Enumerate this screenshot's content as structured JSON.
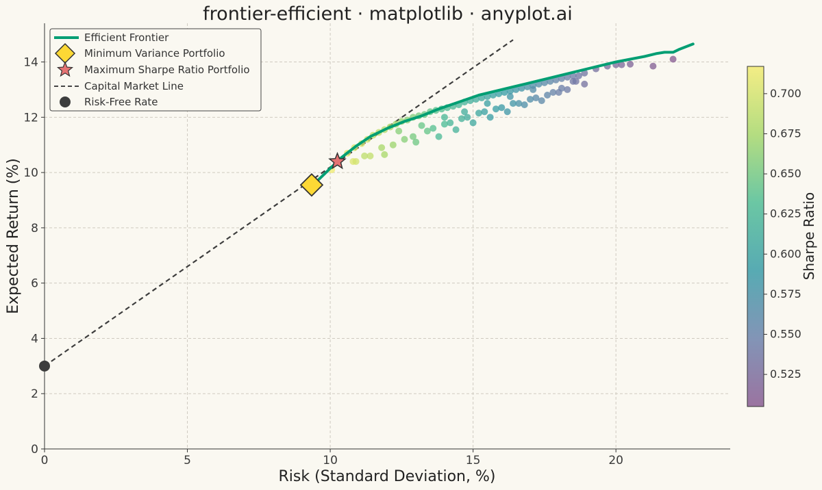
{
  "chart_data": {
    "type": "scatter",
    "title": "frontier-efficient · matplotlib · anyplot.ai",
    "xlabel": "Risk (Standard Deviation, %)",
    "ylabel": "Expected Return (%)",
    "xlim": [
      0,
      24
    ],
    "ylim": [
      0,
      15.4
    ],
    "xticks": [
      0,
      5,
      10,
      15,
      20
    ],
    "yticks": [
      0,
      2,
      4,
      6,
      8,
      10,
      12,
      14
    ],
    "grid": true,
    "legend_position": "top-left",
    "colorbar": {
      "label": "Sharpe Ratio",
      "range": [
        0.505,
        0.717
      ],
      "ticks": [
        "0.525",
        "0.550",
        "0.575",
        "0.600",
        "0.625",
        "0.650",
        "0.675",
        "0.700"
      ],
      "tick_values": [
        0.525,
        0.55,
        0.575,
        0.6,
        0.625,
        0.65,
        0.675,
        0.7
      ],
      "colormap_stops": [
        "#8A5C92",
        "#6D83AC",
        "#3B9DA8",
        "#52BE96",
        "#A8D86D",
        "#F2EB72"
      ]
    },
    "risk_free_rate": {
      "x": 0,
      "y": 3.0
    },
    "capital_market_line": {
      "x": [
        0,
        16.4
      ],
      "y": [
        3.0,
        14.8
      ]
    },
    "min_variance_portfolio": {
      "x": 9.35,
      "y": 9.55
    },
    "max_sharpe_portfolio": {
      "x": 10.25,
      "y": 10.4
    },
    "efficient_frontier": {
      "x": [
        9.6,
        10.0,
        10.4,
        10.9,
        11.4,
        12.0,
        12.6,
        13.2,
        13.8,
        14.5,
        15.2,
        16.0,
        16.8,
        17.6,
        18.4,
        19.2,
        20.0,
        20.5,
        21.0,
        21.4,
        21.7,
        22.0,
        22.2,
        22.7
      ],
      "y": [
        9.75,
        10.15,
        10.55,
        10.95,
        11.3,
        11.6,
        11.85,
        12.05,
        12.3,
        12.55,
        12.8,
        13.0,
        13.2,
        13.4,
        13.6,
        13.8,
        14.0,
        14.1,
        14.2,
        14.3,
        14.35,
        14.35,
        14.45,
        14.65
      ]
    },
    "portfolios": {
      "x": [
        10.05,
        10.3,
        10.6,
        10.85,
        11.1,
        11.3,
        11.5,
        11.7,
        11.9,
        12.1,
        12.3,
        12.5,
        12.7,
        12.9,
        13.1,
        13.3,
        13.5,
        13.7,
        13.9,
        14.1,
        14.3,
        14.5,
        14.7,
        14.9,
        15.1,
        15.3,
        15.5,
        15.7,
        15.9,
        16.1,
        16.3,
        16.5,
        16.7,
        16.9,
        17.1,
        17.3,
        17.5,
        17.7,
        17.9,
        18.1,
        18.3,
        18.5,
        18.7,
        18.9,
        19.3,
        19.7,
        20.0,
        20.2,
        20.5,
        21.3,
        22.0,
        10.8,
        11.4,
        12.2,
        12.9,
        13.6,
        14.2,
        14.8,
        15.4,
        16.0,
        16.6,
        17.2,
        17.8,
        18.3,
        18.9,
        11.2,
        11.8,
        12.6,
        13.4,
        14.0,
        14.6,
        15.2,
        15.8,
        16.4,
        17.0,
        17.6,
        18.1,
        18.6,
        10.9,
        11.9,
        13.0,
        13.8,
        14.4,
        15.0,
        15.6,
        16.2,
        16.8,
        17.4,
        18.0,
        18.5,
        12.4,
        13.2,
        14.0,
        14.7,
        15.5,
        16.3,
        17.1
      ],
      "y": [
        10.1,
        10.45,
        10.7,
        10.9,
        11.05,
        11.2,
        11.35,
        11.45,
        11.55,
        11.65,
        11.75,
        11.85,
        11.9,
        12.0,
        12.05,
        12.1,
        12.2,
        12.25,
        12.3,
        12.35,
        12.4,
        12.45,
        12.55,
        12.6,
        12.65,
        12.7,
        12.75,
        12.8,
        12.85,
        12.9,
        12.95,
        13.0,
        13.05,
        13.1,
        13.15,
        13.2,
        13.25,
        13.3,
        13.35,
        13.4,
        13.45,
        13.5,
        13.5,
        13.6,
        13.75,
        13.85,
        13.9,
        13.9,
        13.92,
        13.85,
        14.1,
        10.4,
        10.6,
        11.0,
        11.3,
        11.6,
        11.8,
        12.0,
        12.2,
        12.35,
        12.5,
        12.7,
        12.9,
        13.0,
        13.2,
        10.6,
        10.9,
        11.2,
        11.5,
        11.75,
        11.95,
        12.15,
        12.3,
        12.5,
        12.65,
        12.8,
        13.05,
        13.3,
        10.4,
        10.65,
        11.1,
        11.3,
        11.55,
        11.8,
        12.0,
        12.2,
        12.45,
        12.6,
        12.9,
        13.3,
        11.5,
        11.7,
        12.0,
        12.2,
        12.5,
        12.75,
        13.0
      ],
      "sharpe": [
        0.716,
        0.712,
        0.708,
        0.703,
        0.699,
        0.695,
        0.69,
        0.686,
        0.682,
        0.677,
        0.672,
        0.667,
        0.662,
        0.658,
        0.653,
        0.648,
        0.643,
        0.638,
        0.634,
        0.63,
        0.626,
        0.622,
        0.618,
        0.614,
        0.61,
        0.606,
        0.602,
        0.598,
        0.594,
        0.59,
        0.586,
        0.582,
        0.578,
        0.574,
        0.57,
        0.566,
        0.562,
        0.558,
        0.554,
        0.55,
        0.546,
        0.542,
        0.538,
        0.535,
        0.53,
        0.527,
        0.524,
        0.521,
        0.518,
        0.512,
        0.506,
        0.705,
        0.69,
        0.67,
        0.652,
        0.636,
        0.622,
        0.61,
        0.598,
        0.586,
        0.574,
        0.562,
        0.551,
        0.541,
        0.531,
        0.688,
        0.676,
        0.66,
        0.643,
        0.629,
        0.617,
        0.604,
        0.592,
        0.58,
        0.568,
        0.556,
        0.546,
        0.536,
        0.7,
        0.676,
        0.648,
        0.628,
        0.618,
        0.606,
        0.594,
        0.582,
        0.57,
        0.558,
        0.546,
        0.538,
        0.66,
        0.645,
        0.625,
        0.612,
        0.596,
        0.58,
        0.565
      ]
    },
    "legend": [
      {
        "label": "Efficient Frontier",
        "marker": "line",
        "color": "#009E73"
      },
      {
        "label": "Minimum Variance Portfolio",
        "marker": "diamond",
        "color": "#FDD835"
      },
      {
        "label": "Maximum Sharpe Ratio Portfolio",
        "marker": "star",
        "color": "#E57373"
      },
      {
        "label": "Capital Market Line",
        "marker": "dashed-line",
        "color": "#444444"
      },
      {
        "label": "Risk-Free Rate",
        "marker": "circle",
        "color": "#3D3D3D"
      }
    ]
  }
}
